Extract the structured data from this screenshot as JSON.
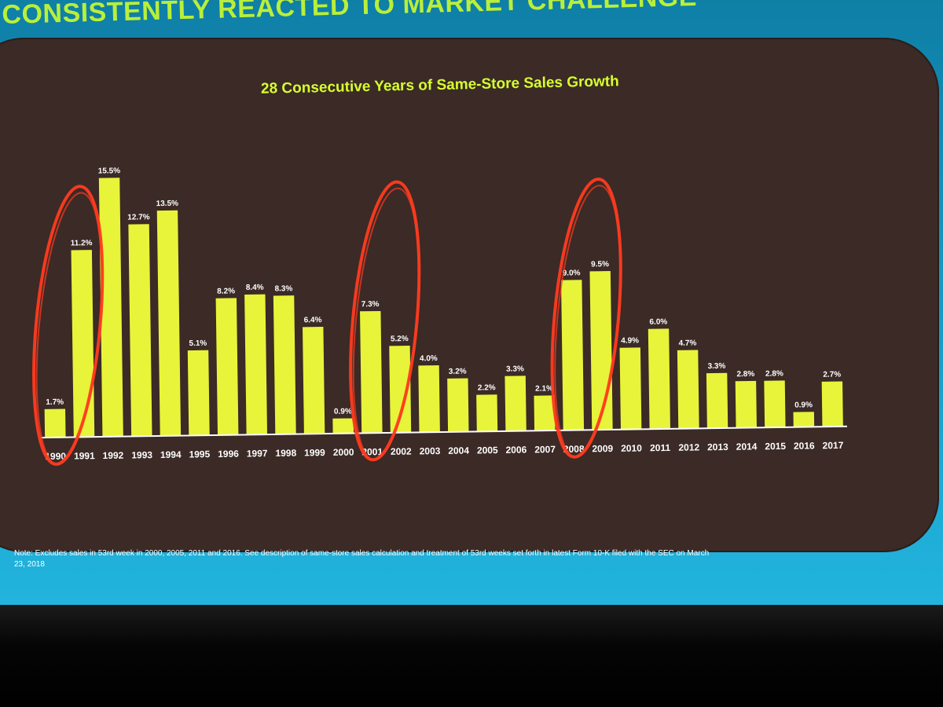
{
  "slide": {
    "headline": "CONSISTENTLY REACTED TO MARKET CHALLENGE",
    "note": "Note: Excludes sales in 53rd week in 2000, 2005, 2011 and 2016. See description of same-store sales calculation and treatment of 53rd weeks set forth in latest Form 10-K filed with the SEC on March 23, 2018"
  },
  "colors": {
    "bar": "#e7f43a",
    "panel": "#3b2a26",
    "title": "#d7ff2e",
    "circle": "#ff3b1f",
    "slide_band": "#1aa4cf"
  },
  "chart_data": {
    "type": "bar",
    "title": "28 Consecutive Years of Same-Store Sales Growth",
    "xlabel": "",
    "ylabel": "",
    "ylim": [
      0,
      16
    ],
    "grid": false,
    "categories": [
      "1990",
      "1991",
      "1992",
      "1993",
      "1994",
      "1995",
      "1996",
      "1997",
      "1998",
      "1999",
      "2000",
      "2001",
      "2002",
      "2003",
      "2004",
      "2005",
      "2006",
      "2007",
      "2008",
      "2009",
      "2010",
      "2011",
      "2012",
      "2013",
      "2014",
      "2015",
      "2016",
      "2017"
    ],
    "values": [
      1.7,
      11.2,
      15.5,
      12.7,
      13.5,
      5.1,
      8.2,
      8.4,
      8.3,
      6.4,
      0.9,
      7.3,
      5.2,
      4.0,
      3.2,
      2.2,
      3.3,
      2.1,
      9.0,
      9.5,
      4.9,
      6.0,
      4.7,
      3.3,
      2.8,
      2.8,
      0.9,
      2.7
    ],
    "value_labels": [
      "1.7%",
      "11.2%",
      "15.5%",
      "12.7%",
      "13.5%",
      "5.1%",
      "8.2%",
      "8.4%",
      "8.3%",
      "6.4%",
      "0.9%",
      "7.3%",
      "5.2%",
      "4.0%",
      "3.2%",
      "2.2%",
      "3.3%",
      "2.1%",
      "9.0%",
      "9.5%",
      "4.9%",
      "6.0%",
      "4.7%",
      "3.3%",
      "2.8%",
      "2.8%",
      "0.9%",
      "2.7%"
    ],
    "highlighted_groups": [
      [
        "1990",
        "1991"
      ],
      [
        "2001",
        "2002"
      ],
      [
        "2008",
        "2009"
      ]
    ]
  }
}
